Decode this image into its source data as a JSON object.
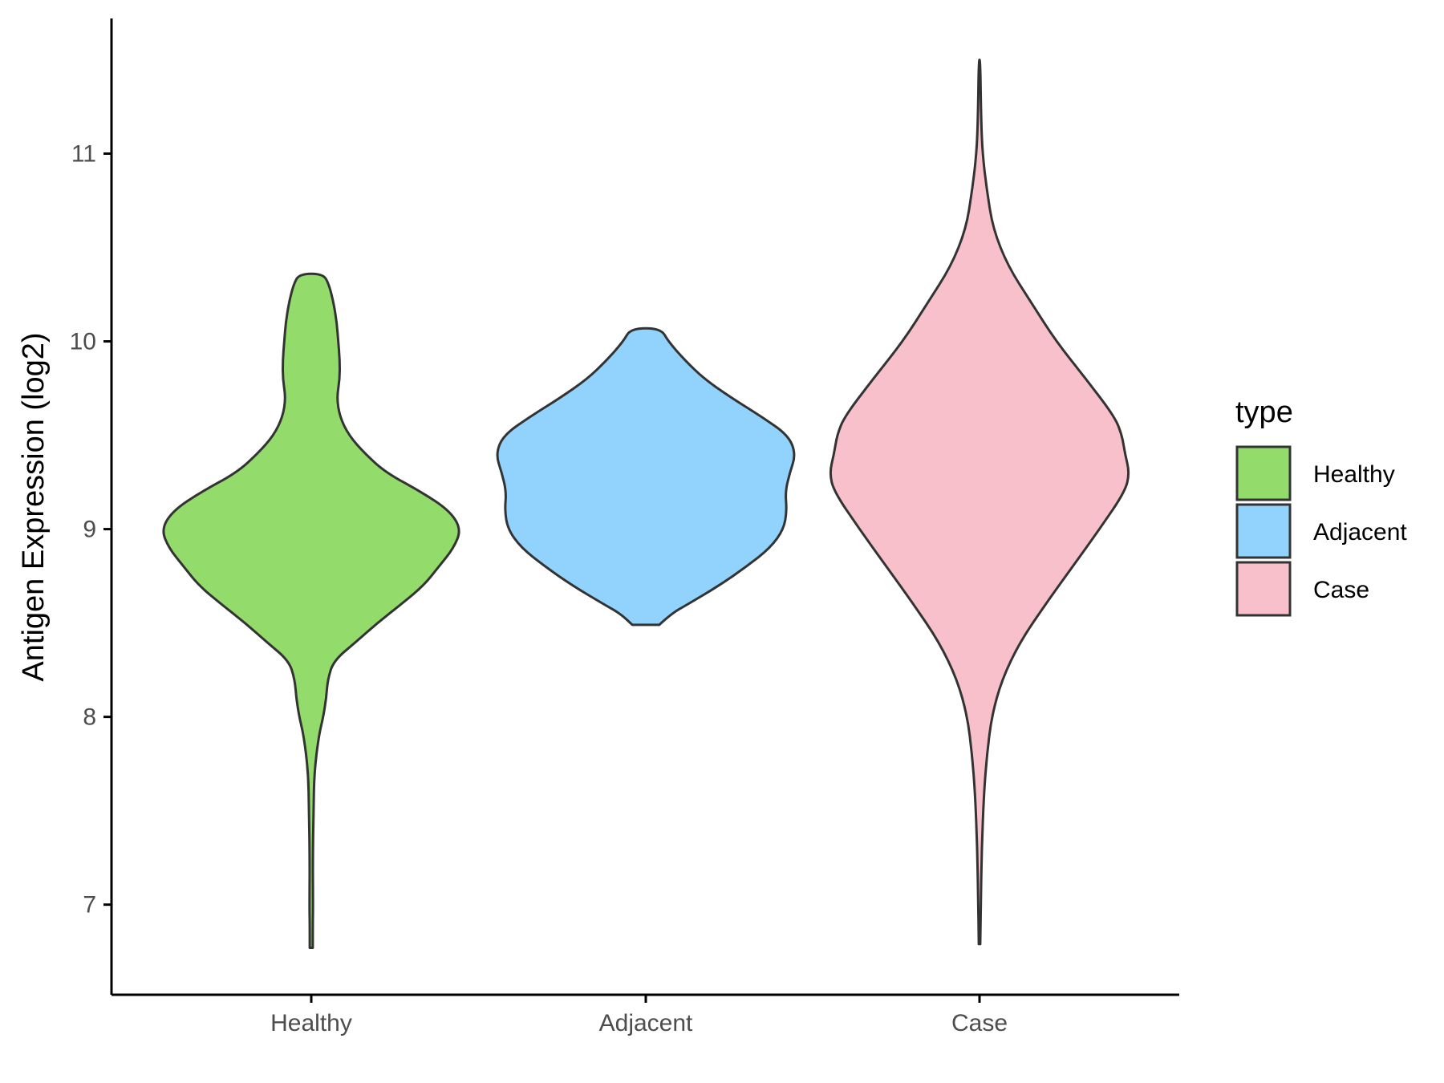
{
  "chart_data": {
    "type": "violin",
    "title": "",
    "xlabel": "",
    "ylabel": "Antigen Expression (log2)",
    "ylim": [
      6.52,
      11.72
    ],
    "yticks": [
      7,
      8,
      9,
      10,
      11
    ],
    "categories": [
      "Healthy",
      "Adjacent",
      "Case"
    ],
    "legend": {
      "title": "type",
      "position": "right",
      "entries": [
        "Healthy",
        "Adjacent",
        "Case"
      ]
    },
    "grid": false,
    "series": [
      {
        "name": "Healthy",
        "color": "#93dc6b",
        "min": 6.77,
        "max": 10.36,
        "density": [
          [
            6.77,
            0.01
          ],
          [
            6.9,
            0.01
          ],
          [
            7.0,
            0.012
          ],
          [
            7.2,
            0.01
          ],
          [
            7.5,
            0.015
          ],
          [
            7.7,
            0.02
          ],
          [
            7.9,
            0.05
          ],
          [
            8.0,
            0.08
          ],
          [
            8.1,
            0.1
          ],
          [
            8.2,
            0.11
          ],
          [
            8.3,
            0.15
          ],
          [
            8.4,
            0.3
          ],
          [
            8.5,
            0.44
          ],
          [
            8.6,
            0.6
          ],
          [
            8.7,
            0.75
          ],
          [
            8.8,
            0.85
          ],
          [
            8.9,
            0.95
          ],
          [
            9.0,
            1.0
          ],
          [
            9.1,
            0.92
          ],
          [
            9.2,
            0.73
          ],
          [
            9.3,
            0.5
          ],
          [
            9.4,
            0.36
          ],
          [
            9.5,
            0.25
          ],
          [
            9.6,
            0.19
          ],
          [
            9.7,
            0.17
          ],
          [
            9.8,
            0.19
          ],
          [
            9.9,
            0.19
          ],
          [
            10.0,
            0.18
          ],
          [
            10.1,
            0.17
          ],
          [
            10.2,
            0.15
          ],
          [
            10.3,
            0.12
          ],
          [
            10.36,
            0.08
          ]
        ]
      },
      {
        "name": "Adjacent",
        "color": "#92d3fd",
        "min": 8.49,
        "max": 10.07,
        "density": [
          [
            8.49,
            0.09
          ],
          [
            8.55,
            0.17
          ],
          [
            8.6,
            0.28
          ],
          [
            8.7,
            0.49
          ],
          [
            8.8,
            0.67
          ],
          [
            8.9,
            0.83
          ],
          [
            9.0,
            0.92
          ],
          [
            9.1,
            0.94
          ],
          [
            9.2,
            0.93
          ],
          [
            9.3,
            0.96
          ],
          [
            9.4,
            1.0
          ],
          [
            9.5,
            0.95
          ],
          [
            9.6,
            0.77
          ],
          [
            9.7,
            0.57
          ],
          [
            9.8,
            0.39
          ],
          [
            9.9,
            0.26
          ],
          [
            10.0,
            0.15
          ],
          [
            10.07,
            0.1
          ]
        ]
      },
      {
        "name": "Case",
        "color": "#f7c0cb",
        "min": 6.79,
        "max": 11.5,
        "density": [
          [
            6.79,
            0.005
          ],
          [
            7.0,
            0.008
          ],
          [
            7.3,
            0.015
          ],
          [
            7.6,
            0.03
          ],
          [
            7.8,
            0.05
          ],
          [
            8.0,
            0.08
          ],
          [
            8.2,
            0.15
          ],
          [
            8.4,
            0.27
          ],
          [
            8.6,
            0.44
          ],
          [
            8.8,
            0.62
          ],
          [
            9.0,
            0.8
          ],
          [
            9.2,
            0.97
          ],
          [
            9.3,
            1.0
          ],
          [
            9.4,
            0.97
          ],
          [
            9.5,
            0.95
          ],
          [
            9.6,
            0.9
          ],
          [
            9.8,
            0.71
          ],
          [
            10.0,
            0.51
          ],
          [
            10.2,
            0.35
          ],
          [
            10.4,
            0.19
          ],
          [
            10.6,
            0.09
          ],
          [
            10.8,
            0.05
          ],
          [
            11.0,
            0.02
          ],
          [
            11.2,
            0.01
          ],
          [
            11.5,
            0.005
          ]
        ]
      }
    ]
  }
}
